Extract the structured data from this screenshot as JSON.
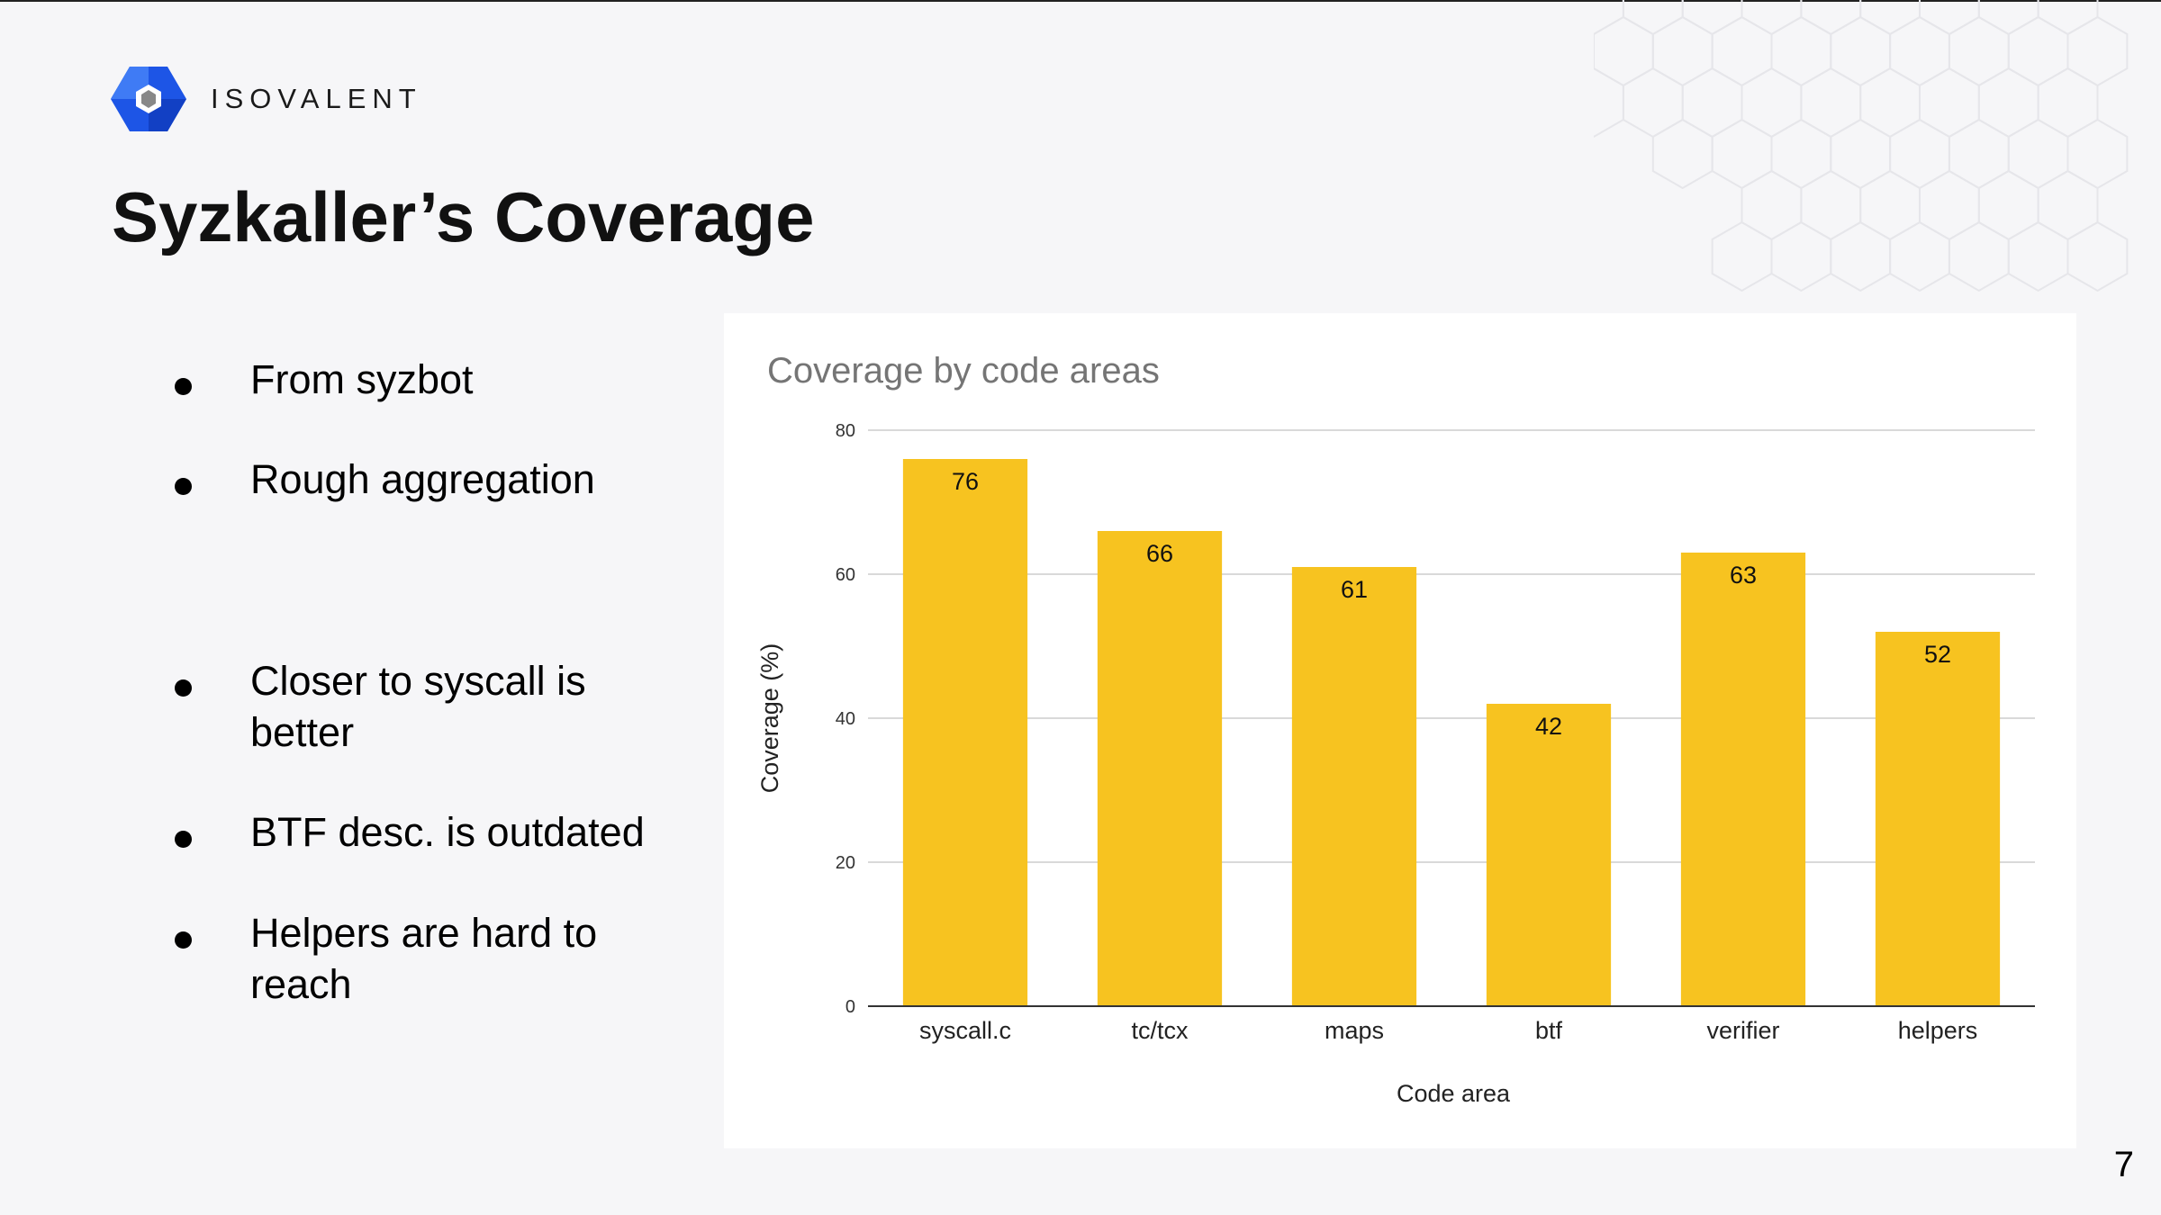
{
  "brand": {
    "name": "ISOVALENT"
  },
  "slide": {
    "title": "Syzkaller’s Coverage",
    "page_number": "7"
  },
  "bullets": [
    {
      "text": "From syzbot"
    },
    {
      "text": "Rough aggregation"
    },
    {
      "text": "Closer to syscall is better"
    },
    {
      "text": "BTF desc. is outdated"
    },
    {
      "text": "Helpers are hard to reach"
    }
  ],
  "colors": {
    "bar": "#f7c320",
    "grid": "#d9d9d9",
    "axis": "#333333",
    "logo_blue": "#1d55e6"
  },
  "chart_data": {
    "type": "bar",
    "title": "Coverage by code areas",
    "xlabel": "Code area",
    "ylabel": "Coverage (%)",
    "categories": [
      "syscall.c",
      "tc/tcx",
      "maps",
      "btf",
      "verifier",
      "helpers"
    ],
    "values": [
      76,
      66,
      61,
      42,
      63,
      52
    ],
    "ylim": [
      0,
      80
    ],
    "yticks": [
      "0",
      "20",
      "40",
      "60",
      "80"
    ],
    "grid": true,
    "data_labels": true
  }
}
